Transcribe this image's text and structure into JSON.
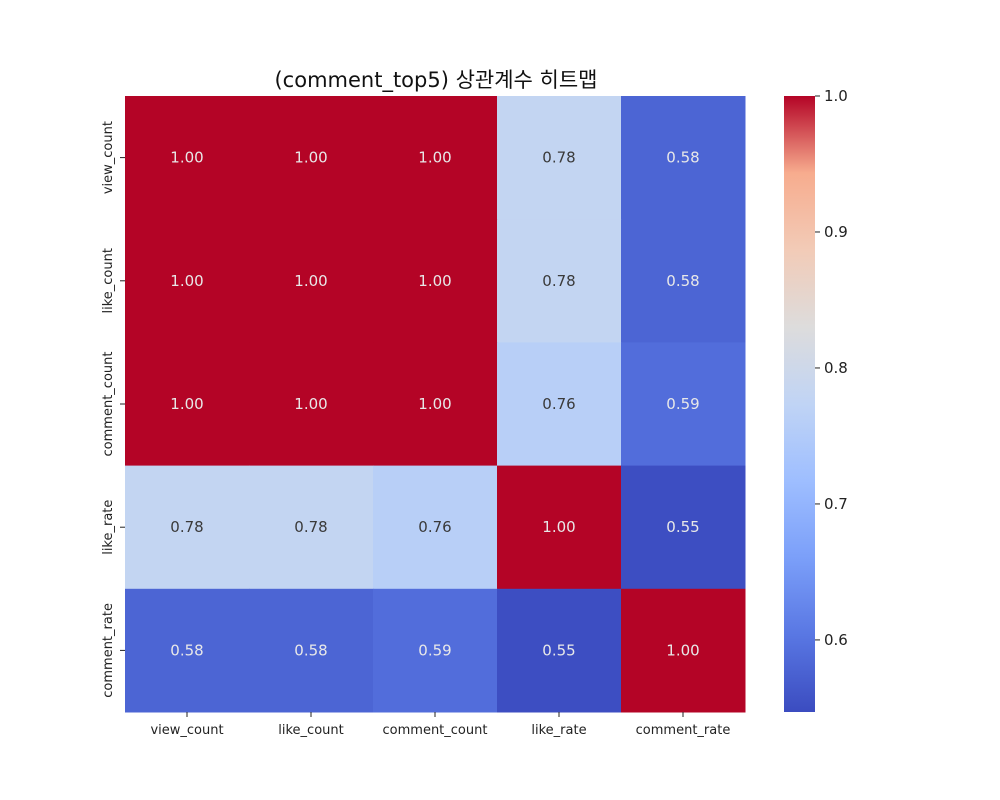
{
  "chart_data": {
    "type": "heatmap",
    "title": "(comment_top5) 상관계수 히트맵",
    "rows": [
      "view_count",
      "like_count",
      "comment_count",
      "like_rate",
      "comment_rate"
    ],
    "columns": [
      "view_count",
      "like_count",
      "comment_count",
      "like_rate",
      "comment_rate"
    ],
    "values": [
      [
        1.0,
        1.0,
        1.0,
        0.78,
        0.58
      ],
      [
        1.0,
        1.0,
        1.0,
        0.78,
        0.58
      ],
      [
        1.0,
        1.0,
        1.0,
        0.76,
        0.59
      ],
      [
        0.78,
        0.78,
        0.76,
        1.0,
        0.55
      ],
      [
        0.58,
        0.58,
        0.59,
        0.55,
        1.0
      ]
    ],
    "annotation_format": "0.00",
    "colormap": "coolwarm",
    "colorbar": {
      "min": 0.547,
      "max": 1.0,
      "ticks": [
        1.0,
        0.9,
        0.8,
        0.7,
        0.6
      ],
      "tick_labels": [
        "1.0",
        "0.9",
        "0.8",
        "0.7",
        "0.6"
      ],
      "placement": "right"
    },
    "grid": false
  }
}
